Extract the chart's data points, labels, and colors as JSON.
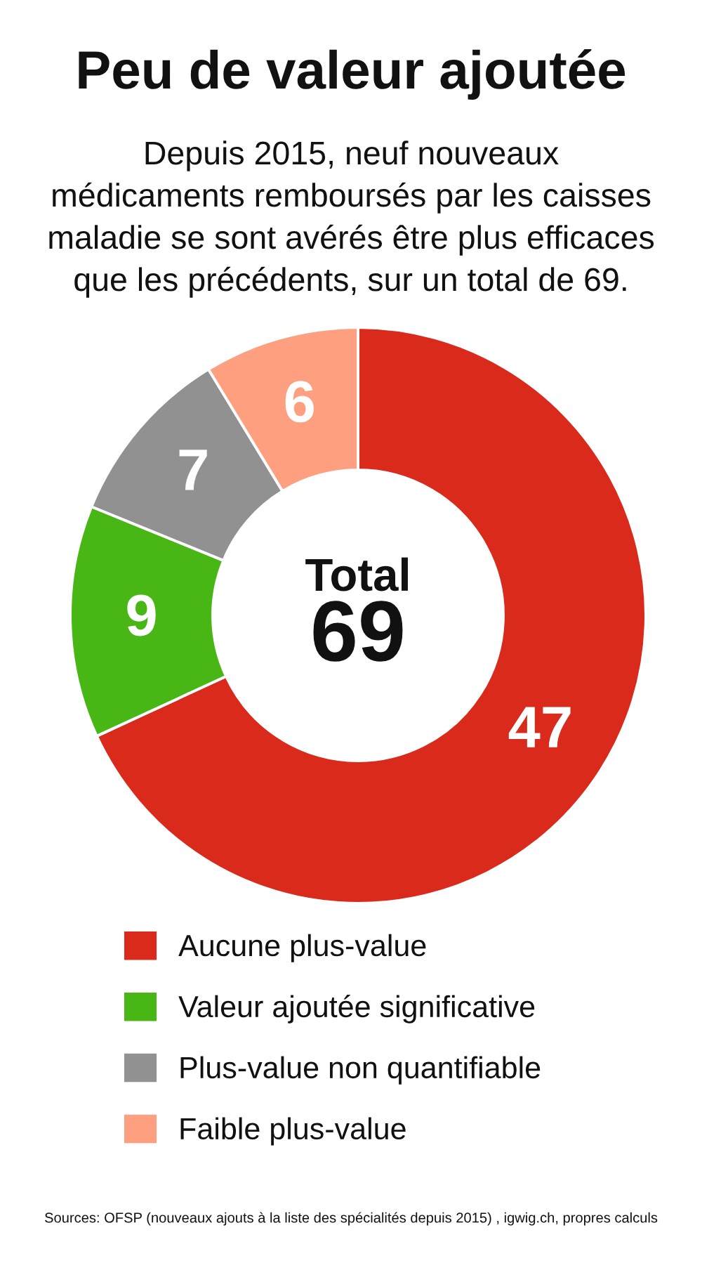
{
  "chart_data": {
    "type": "donut",
    "title": "Peu de valeur ajoutée",
    "subtitle": "Depuis 2015, neuf nouveaux\nmédicaments remboursés par les caisses\nmaladie se sont avérés être plus efficaces\nque les précédents, sur un total de 69.",
    "categories": [
      "Aucune plus-value",
      "Valeur ajoutée significative",
      "Plus-value non quantifiable",
      "Faible plus-value"
    ],
    "values": [
      47,
      9,
      7,
      6
    ],
    "colors": [
      "#d92a1c",
      "#48b615",
      "#909190",
      "#fe9f7f"
    ],
    "data_labels": true,
    "legend": "bottom",
    "annotations": [
      "Total",
      "69",
      "Sources: OFSP (nouveaux ajouts à la liste des spécialités depuis 2015) , igwig.ch, propres calculs"
    ]
  }
}
